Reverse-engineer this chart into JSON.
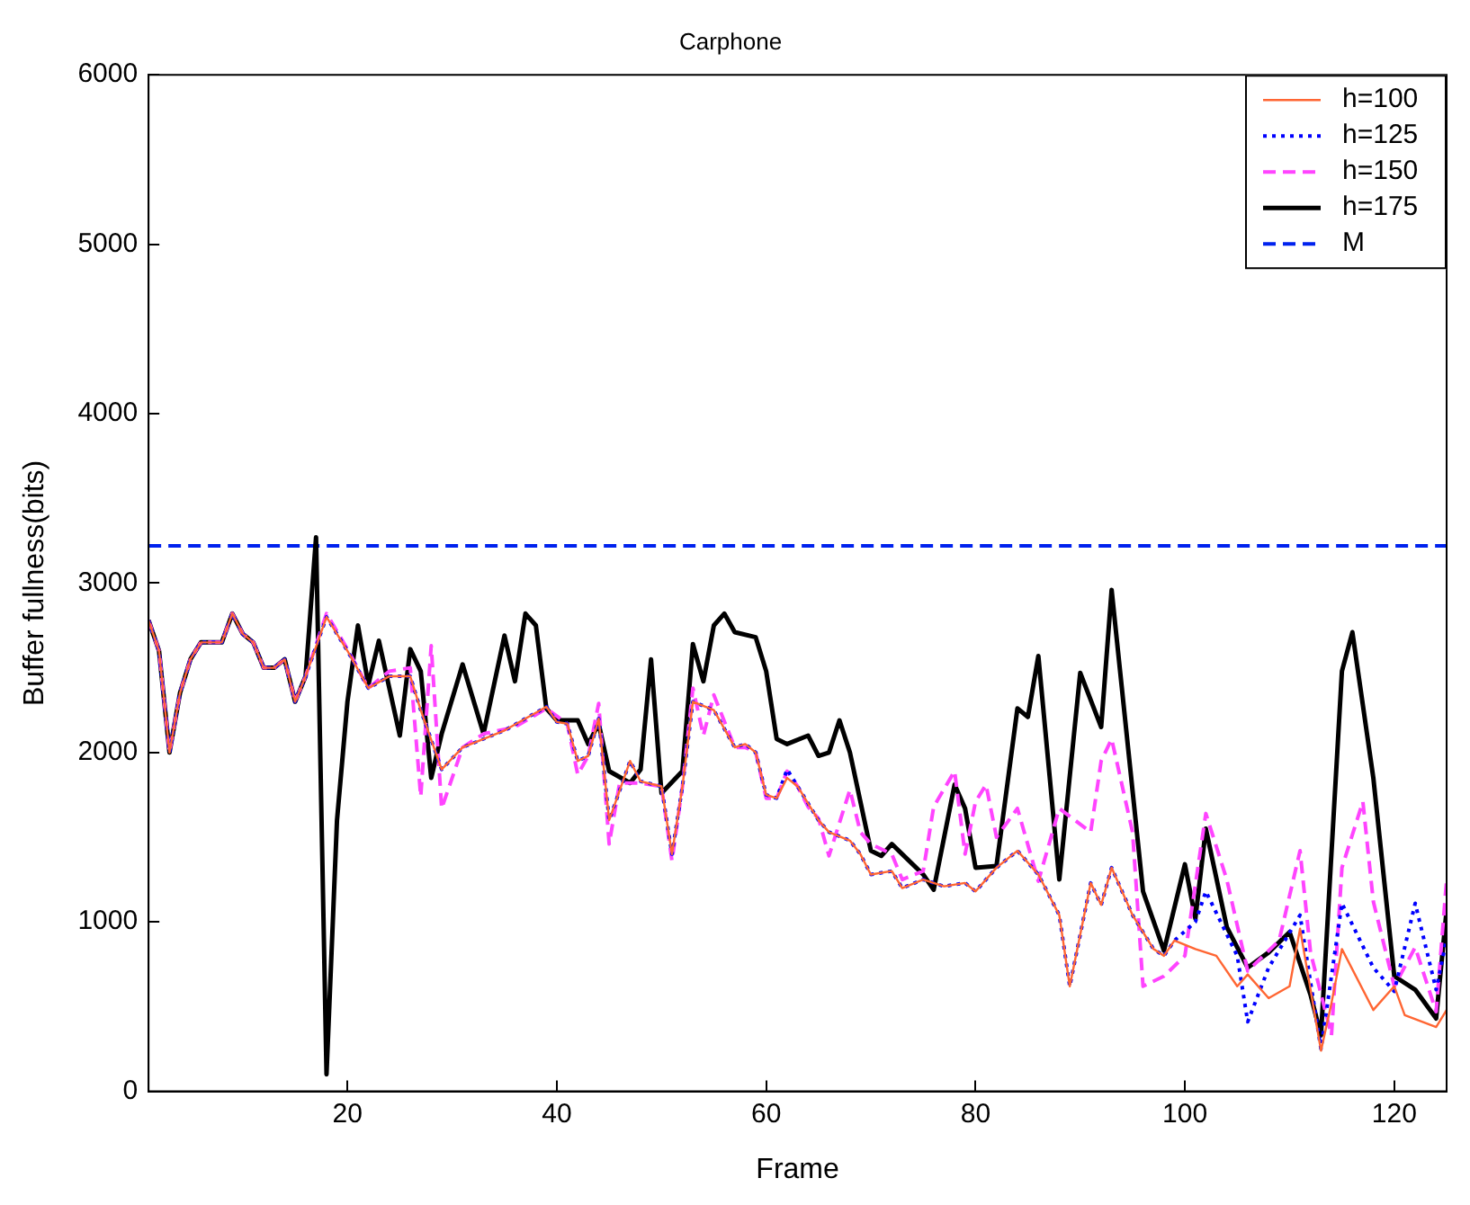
{
  "chart_data": {
    "type": "line",
    "title": "Carphone",
    "xlabel": "Frame",
    "ylabel": "Buffer fullness(bits)",
    "xlim": [
      1,
      125
    ],
    "xticks": [
      20,
      40,
      60,
      80,
      100,
      120
    ],
    "ylim": [
      0,
      6000
    ],
    "yticks": [
      0,
      1000,
      2000,
      3000,
      4000,
      5000,
      6000
    ],
    "grid": false,
    "legend": "top right",
    "marker": "none",
    "series": [
      {
        "name": "h=100",
        "color": "#ff6633",
        "line_style": "solid",
        "x": [
          1,
          2,
          3,
          4,
          5,
          6,
          7,
          8,
          9,
          10,
          11,
          12,
          13,
          14,
          15,
          16,
          18,
          20,
          22,
          24,
          26,
          27,
          29,
          31,
          35,
          39,
          40,
          41,
          42,
          43,
          44,
          45,
          47,
          48,
          50,
          51,
          52,
          53,
          55,
          57,
          58,
          59,
          60,
          61,
          62,
          63,
          64,
          65,
          66,
          68,
          69,
          70,
          72,
          73,
          75,
          77,
          79,
          80,
          82,
          84,
          86,
          88,
          89,
          91,
          92,
          93,
          95,
          97,
          98,
          99,
          101,
          103,
          105,
          106,
          108,
          110,
          111,
          113,
          114,
          115,
          118,
          120,
          121,
          124,
          125
        ],
        "values": [
          2780,
          2600,
          2000,
          2350,
          2550,
          2650,
          2650,
          2650,
          2820,
          2700,
          2650,
          2500,
          2500,
          2550,
          2300,
          2450,
          2800,
          2600,
          2380,
          2450,
          2450,
          2250,
          1900,
          2030,
          2130,
          2270,
          2180,
          2170,
          1950,
          1980,
          2200,
          1600,
          1950,
          1830,
          1800,
          1400,
          1800,
          2300,
          2250,
          2030,
          2050,
          2000,
          1750,
          1730,
          1850,
          1800,
          1700,
          1600,
          1530,
          1480,
          1400,
          1280,
          1300,
          1200,
          1250,
          1210,
          1230,
          1180,
          1320,
          1420,
          1280,
          1040,
          620,
          1230,
          1100,
          1320,
          1040,
          840,
          800,
          890,
          840,
          800,
          620,
          690,
          550,
          620,
          960,
          240,
          520,
          840,
          480,
          620,
          450,
          380,
          480
        ]
      },
      {
        "name": "h=125",
        "color": "#0000ff",
        "line_style": "dotted",
        "x": [
          1,
          2,
          3,
          4,
          5,
          6,
          7,
          8,
          9,
          10,
          11,
          12,
          13,
          14,
          15,
          16,
          18,
          20,
          22,
          24,
          26,
          27,
          29,
          31,
          35,
          39,
          40,
          41,
          42,
          43,
          44,
          45,
          47,
          48,
          50,
          51,
          52,
          53,
          55,
          57,
          58,
          59,
          60,
          61,
          62,
          63,
          64,
          65,
          66,
          68,
          69,
          70,
          72,
          73,
          75,
          77,
          79,
          80,
          82,
          84,
          86,
          88,
          89,
          91,
          92,
          93,
          95,
          97,
          98,
          99,
          101,
          102,
          105,
          106,
          108,
          111,
          113,
          115,
          118,
          120,
          122,
          124,
          125
        ],
        "values": [
          2780,
          2600,
          2000,
          2350,
          2550,
          2650,
          2650,
          2650,
          2820,
          2700,
          2650,
          2500,
          2500,
          2550,
          2300,
          2450,
          2800,
          2600,
          2380,
          2450,
          2450,
          2250,
          1900,
          2030,
          2130,
          2270,
          2180,
          2170,
          1950,
          1980,
          2200,
          1600,
          1950,
          1830,
          1800,
          1400,
          1800,
          2300,
          2250,
          2030,
          2050,
          2000,
          1750,
          1730,
          1900,
          1800,
          1700,
          1600,
          1530,
          1480,
          1400,
          1280,
          1300,
          1200,
          1250,
          1210,
          1230,
          1180,
          1320,
          1420,
          1280,
          1040,
          620,
          1230,
          1100,
          1320,
          1040,
          840,
          800,
          890,
          1000,
          1180,
          800,
          410,
          730,
          1040,
          250,
          1110,
          730,
          590,
          1110,
          600,
          900
        ]
      },
      {
        "name": "h=150",
        "color": "#ff44ff",
        "line_style": "dashed",
        "x": [
          1,
          2,
          3,
          4,
          5,
          6,
          7,
          8,
          9,
          10,
          11,
          12,
          13,
          14,
          15,
          16,
          18,
          20,
          22,
          24,
          26,
          27,
          28,
          29,
          31,
          33,
          36,
          39,
          41,
          42,
          43,
          44,
          45,
          46,
          48,
          50,
          51,
          52,
          53,
          54,
          55,
          57,
          58,
          59,
          60,
          61,
          62,
          63,
          64,
          65,
          66,
          68,
          69,
          70,
          72,
          73,
          75,
          76,
          78,
          79,
          80,
          81,
          82,
          84,
          86,
          88,
          91,
          92,
          93,
          95,
          96,
          98,
          100,
          102,
          104,
          106,
          109,
          111,
          112,
          114,
          115,
          117,
          118,
          120,
          122,
          124,
          125
        ],
        "values": [
          2780,
          2600,
          2000,
          2350,
          2550,
          2650,
          2650,
          2650,
          2820,
          2700,
          2650,
          2500,
          2500,
          2550,
          2300,
          2450,
          2820,
          2610,
          2380,
          2480,
          2500,
          1740,
          2630,
          1670,
          2030,
          2110,
          2150,
          2260,
          2170,
          1870,
          1980,
          2290,
          1460,
          1820,
          1820,
          1800,
          1360,
          1800,
          2380,
          2100,
          2340,
          2030,
          2030,
          2000,
          1730,
          1730,
          1890,
          1800,
          1680,
          1610,
          1390,
          1780,
          1530,
          1460,
          1400,
          1250,
          1300,
          1680,
          1890,
          1400,
          1710,
          1810,
          1500,
          1670,
          1240,
          1670,
          1530,
          1950,
          2080,
          1530,
          620,
          680,
          800,
          1640,
          1250,
          710,
          890,
          1420,
          820,
          330,
          1320,
          1710,
          1120,
          620,
          850,
          470,
          1250
        ]
      },
      {
        "name": "h=175",
        "color": "#000000",
        "line_style": "solid",
        "x": [
          1,
          2,
          3,
          4,
          5,
          6,
          7,
          8,
          9,
          10,
          11,
          12,
          13,
          14,
          15,
          16,
          17,
          18,
          19,
          20,
          21,
          22,
          23,
          25,
          26,
          27,
          28,
          29,
          31,
          33,
          35,
          36,
          37,
          38,
          39,
          40,
          42,
          43,
          44,
          45,
          47,
          48,
          49,
          50,
          52,
          53,
          54,
          55,
          56,
          57,
          59,
          60,
          61,
          62,
          64,
          65,
          66,
          67,
          68,
          70,
          71,
          72,
          73,
          75,
          76,
          78,
          79,
          80,
          82,
          84,
          85,
          86,
          88,
          90,
          92,
          93,
          96,
          98,
          100,
          101,
          102,
          104,
          106,
          108,
          110,
          112,
          113,
          115,
          116,
          118,
          120,
          122,
          124,
          125
        ],
        "values": [
          2780,
          2600,
          2000,
          2350,
          2550,
          2650,
          2650,
          2650,
          2820,
          2700,
          2650,
          2500,
          2500,
          2550,
          2300,
          2450,
          3270,
          100,
          1600,
          2300,
          2750,
          2400,
          2660,
          2100,
          2610,
          2480,
          1850,
          2110,
          2520,
          2110,
          2690,
          2420,
          2820,
          2750,
          2260,
          2190,
          2190,
          2050,
          2170,
          1890,
          1820,
          1900,
          2550,
          1760,
          1890,
          2640,
          2420,
          2750,
          2820,
          2710,
          2680,
          2480,
          2080,
          2050,
          2100,
          1980,
          2000,
          2190,
          2000,
          1420,
          1390,
          1460,
          1400,
          1280,
          1190,
          1810,
          1670,
          1320,
          1330,
          2260,
          2210,
          2570,
          1250,
          2470,
          2150,
          2960,
          1180,
          830,
          1340,
          1020,
          1550,
          970,
          730,
          820,
          940,
          570,
          330,
          2480,
          2710,
          1850,
          680,
          600,
          430,
          1070
        ]
      },
      {
        "name": "M",
        "color": "#0022ee",
        "line_style": "dashed",
        "x": [
          1,
          125
        ],
        "values": [
          3220,
          3220
        ]
      }
    ]
  }
}
